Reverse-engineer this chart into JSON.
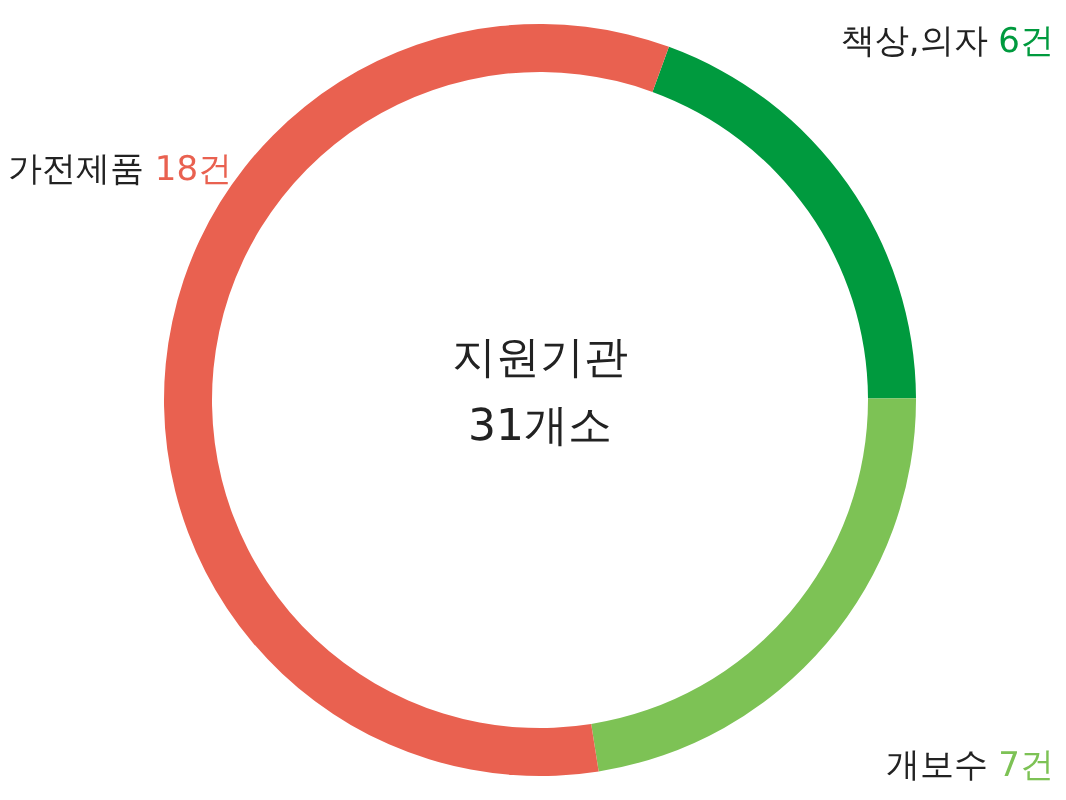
{
  "chart_data": {
    "type": "donut",
    "categories": [
      "책상,의자",
      "개보수",
      "가전제품"
    ],
    "values": [
      6,
      7,
      18
    ],
    "colors": [
      "#009a3e",
      "#7dc255",
      "#e96150"
    ],
    "value_labels": [
      "6건",
      "7건",
      "18건"
    ],
    "annotations": [
      "지원기관",
      "31개소"
    ]
  }
}
